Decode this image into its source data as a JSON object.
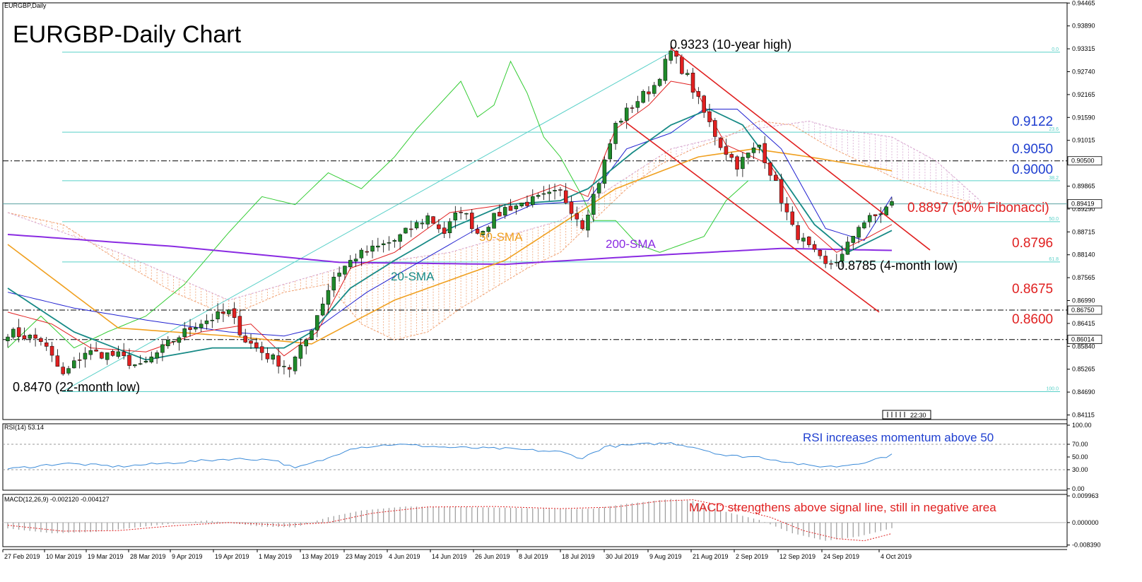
{
  "window_label": "EURGBP,Daily",
  "title": "EURGBP-Daily Chart",
  "colors": {
    "bull": "#1f8a2a",
    "bear": "#e02020",
    "sma20": "#178a86",
    "sma50": "#f0a020",
    "sma200": "#8a2be2",
    "tenkan": "#e02020",
    "kijun": "#2020d0",
    "chikou": "#33cc33",
    "kumo": "#f0a070",
    "fib": "#58d0c8",
    "channel": "#e02020",
    "rsi": "#3a8ad8",
    "macd_hist": "#9a9a9a",
    "macd_signal": "#e02020",
    "blue_label": "#1f3fd0",
    "red_label": "#e02020"
  },
  "chart_data": [
    {
      "type": "candlestick",
      "symbol": "EURGBP",
      "timeframe": "Daily",
      "ylim": [
        0.84,
        0.9447
      ],
      "y_ticks": [
        "0.94465",
        "0.93890",
        "0.93315",
        "0.92740",
        "0.92165",
        "0.91590",
        "0.91015",
        "0.90440",
        "0.89865",
        "0.89290",
        "0.88715",
        "0.88140",
        "0.87565",
        "0.86990",
        "0.86415",
        "0.85840",
        "0.85265",
        "0.84690",
        "0.84115"
      ],
      "x_ticks": [
        "27 Feb 2019",
        "10 Mar 2019",
        "19 Mar 2019",
        "28 Mar 2019",
        "9 Apr 2019",
        "19 Apr 2019",
        "1 May 2019",
        "13 May 2019",
        "23 May 2019",
        "4 Jun 2019",
        "14 Jun 2019",
        "26 Jun 2019",
        "8 Jul 2019",
        "18 Jul 2019",
        "30 Jul 2019",
        "9 Aug 2019",
        "21 Aug 2019",
        "2 Sep 2019",
        "12 Sep 2019",
        "24 Sep 2019",
        "4 Oct 2019"
      ],
      "price_tags": [
        {
          "label": "0.90500",
          "value": 0.905
        },
        {
          "label": "0.89419",
          "value": 0.89419
        },
        {
          "label": "0.86750",
          "value": 0.8675
        },
        {
          "label": "0.86014",
          "value": 0.86014
        }
      ],
      "candle_anchors": [
        [
          0,
          0.862
        ],
        [
          6,
          0.86
        ],
        [
          10,
          0.851
        ],
        [
          14,
          0.857
        ],
        [
          20,
          0.856
        ],
        [
          24,
          0.853
        ],
        [
          29,
          0.859
        ],
        [
          34,
          0.864
        ],
        [
          40,
          0.867
        ],
        [
          43,
          0.86
        ],
        [
          47,
          0.856
        ],
        [
          51,
          0.853
        ],
        [
          54,
          0.86
        ],
        [
          59,
          0.876
        ],
        [
          63,
          0.881
        ],
        [
          70,
          0.885
        ],
        [
          76,
          0.891
        ],
        [
          79,
          0.887
        ],
        [
          82,
          0.893
        ],
        [
          85,
          0.887
        ],
        [
          90,
          0.893
        ],
        [
          95,
          0.895
        ],
        [
          100,
          0.897
        ],
        [
          104,
          0.889
        ],
        [
          107,
          0.9
        ],
        [
          110,
          0.914
        ],
        [
          113,
          0.919
        ],
        [
          117,
          0.924
        ],
        [
          120,
          0.9323
        ],
        [
          123,
          0.926
        ],
        [
          126,
          0.917
        ],
        [
          129,
          0.909
        ],
        [
          132,
          0.904
        ],
        [
          136,
          0.909
        ],
        [
          139,
          0.899
        ],
        [
          142,
          0.888
        ],
        [
          145,
          0.883
        ],
        [
          148,
          0.8785
        ],
        [
          151,
          0.881
        ],
        [
          154,
          0.889
        ],
        [
          157,
          0.891
        ],
        [
          160,
          0.8942
        ]
      ],
      "sma20_anchors": [
        [
          0,
          0.873
        ],
        [
          12,
          0.862
        ],
        [
          25,
          0.855
        ],
        [
          37,
          0.858
        ],
        [
          50,
          0.858
        ],
        [
          55,
          0.862
        ],
        [
          62,
          0.873
        ],
        [
          70,
          0.88
        ],
        [
          80,
          0.888
        ],
        [
          90,
          0.894
        ],
        [
          100,
          0.895
        ],
        [
          105,
          0.898
        ],
        [
          113,
          0.907
        ],
        [
          120,
          0.914
        ],
        [
          127,
          0.918
        ],
        [
          133,
          0.914
        ],
        [
          140,
          0.901
        ],
        [
          146,
          0.889
        ],
        [
          152,
          0.882
        ],
        [
          160,
          0.8875
        ]
      ],
      "sma50_anchors": [
        [
          0,
          0.884
        ],
        [
          20,
          0.863
        ],
        [
          40,
          0.861
        ],
        [
          55,
          0.859
        ],
        [
          70,
          0.87
        ],
        [
          90,
          0.88
        ],
        [
          110,
          0.898
        ],
        [
          125,
          0.906
        ],
        [
          135,
          0.908
        ],
        [
          145,
          0.906
        ],
        [
          160,
          0.9025
        ]
      ],
      "sma200_anchors": [
        [
          0,
          0.8865
        ],
        [
          30,
          0.8835
        ],
        [
          60,
          0.8795
        ],
        [
          90,
          0.879
        ],
        [
          120,
          0.8815
        ],
        [
          140,
          0.883
        ],
        [
          160,
          0.8825
        ]
      ],
      "tenkan_anchors": [
        [
          0,
          0.867
        ],
        [
          8,
          0.864
        ],
        [
          15,
          0.858
        ],
        [
          25,
          0.857
        ],
        [
          35,
          0.862
        ],
        [
          44,
          0.864
        ],
        [
          50,
          0.856
        ],
        [
          56,
          0.862
        ],
        [
          62,
          0.878
        ],
        [
          70,
          0.882
        ],
        [
          80,
          0.892
        ],
        [
          90,
          0.894
        ],
        [
          100,
          0.899
        ],
        [
          105,
          0.896
        ],
        [
          110,
          0.913
        ],
        [
          116,
          0.919
        ],
        [
          120,
          0.925
        ],
        [
          124,
          0.924
        ],
        [
          130,
          0.909
        ],
        [
          138,
          0.904
        ],
        [
          145,
          0.888
        ],
        [
          150,
          0.882
        ],
        [
          156,
          0.886
        ],
        [
          160,
          0.889
        ]
      ],
      "kijun_anchors": [
        [
          0,
          0.872
        ],
        [
          12,
          0.868
        ],
        [
          25,
          0.865
        ],
        [
          40,
          0.862
        ],
        [
          50,
          0.861
        ],
        [
          56,
          0.863
        ],
        [
          65,
          0.872
        ],
        [
          75,
          0.88
        ],
        [
          85,
          0.888
        ],
        [
          95,
          0.894
        ],
        [
          105,
          0.895
        ],
        [
          112,
          0.908
        ],
        [
          120,
          0.912
        ],
        [
          126,
          0.918
        ],
        [
          132,
          0.918
        ],
        [
          140,
          0.908
        ],
        [
          148,
          0.888
        ],
        [
          155,
          0.885
        ],
        [
          160,
          0.896
        ]
      ],
      "chikou_anchors": [
        [
          0,
          0.858
        ],
        [
          6,
          0.866
        ],
        [
          12,
          0.858
        ],
        [
          18,
          0.862
        ],
        [
          25,
          0.866
        ],
        [
          32,
          0.874
        ],
        [
          40,
          0.887
        ],
        [
          46,
          0.896
        ],
        [
          52,
          0.894
        ],
        [
          58,
          0.902
        ],
        [
          64,
          0.898
        ],
        [
          70,
          0.906
        ],
        [
          74,
          0.913
        ],
        [
          78,
          0.919
        ],
        [
          82,
          0.925
        ],
        [
          85,
          0.916
        ],
        [
          88,
          0.919
        ],
        [
          91,
          0.93
        ],
        [
          94,
          0.922
        ],
        [
          97,
          0.911
        ],
        [
          100,
          0.906
        ],
        [
          104,
          0.896
        ],
        [
          106,
          0.89
        ],
        [
          110,
          0.89
        ],
        [
          114,
          0.884
        ],
        [
          118,
          0.882
        ],
        [
          122,
          0.884
        ],
        [
          126,
          0.886
        ],
        [
          130,
          0.895
        ],
        [
          134,
          0.9
        ]
      ],
      "kumo_anchors": [
        [
          0,
          0.892
        ],
        [
          10,
          0.889
        ],
        [
          20,
          0.88
        ],
        [
          30,
          0.872
        ],
        [
          40,
          0.866
        ],
        [
          50,
          0.872
        ],
        [
          58,
          0.874
        ],
        [
          64,
          0.864
        ],
        [
          70,
          0.86
        ],
        [
          76,
          0.862
        ],
        [
          82,
          0.868
        ],
        [
          88,
          0.873
        ],
        [
          94,
          0.878
        ],
        [
          100,
          0.882
        ],
        [
          106,
          0.89
        ],
        [
          112,
          0.898
        ],
        [
          118,
          0.904
        ],
        [
          124,
          0.908
        ],
        [
          130,
          0.911
        ],
        [
          136,
          0.915
        ],
        [
          142,
          0.914
        ],
        [
          148,
          0.909
        ],
        [
          154,
          0.905
        ],
        [
          160,
          0.901
        ],
        [
          168,
          0.897
        ],
        [
          176,
          0.894
        ]
      ],
      "kumo_upper_anchors": [
        [
          0,
          0.892
        ],
        [
          20,
          0.882
        ],
        [
          40,
          0.87
        ],
        [
          60,
          0.878
        ],
        [
          80,
          0.882
        ],
        [
          100,
          0.89
        ],
        [
          120,
          0.908
        ],
        [
          135,
          0.913
        ],
        [
          145,
          0.915
        ],
        [
          150,
          0.913
        ],
        [
          160,
          0.911
        ],
        [
          168,
          0.905
        ],
        [
          176,
          0.895
        ]
      ],
      "fib_levels": [
        {
          "label": "0.0",
          "value": 0.9323
        },
        {
          "label": "23.6",
          "value": 0.9122
        },
        {
          "label": "38.2",
          "value": 0.9
        },
        {
          "label": "50.0",
          "value": 0.8897
        },
        {
          "label": "61.8",
          "value": 0.8796
        },
        {
          "label": "100.0",
          "value": 0.847
        }
      ],
      "dashed_levels": [
        0.905,
        0.8675,
        0.8601
      ],
      "price_line": 0.89419,
      "annotations": {
        "high": "0.9323 (10-year high)",
        "low_22m": "0.8470 (22-month low)",
        "low_4m": "0.8785 (4-month low)",
        "lvl_9122": "0.9122",
        "lvl_9050": "0.9050",
        "lvl_9000": "0.9000",
        "lvl_8897": "0.8897 (50% Fibonacci)",
        "lvl_8796": "0.8796",
        "lvl_8675": "0.8675",
        "lvl_8600": "0.8600",
        "sma20": "20-SMA",
        "sma50": "50-SMA",
        "sma200": "200-SMA"
      },
      "scroll_indicator": "22:30"
    },
    {
      "type": "line",
      "name": "RSI",
      "header": "RSI(14) 53.14",
      "ylim": [
        0,
        100
      ],
      "y_ticks": [
        "100.00",
        "70.00",
        "50.00",
        "30.00",
        "0.00"
      ],
      "levels": [
        70,
        30
      ],
      "rsi_anchors": [
        [
          0,
          31
        ],
        [
          10,
          40
        ],
        [
          20,
          35
        ],
        [
          30,
          41
        ],
        [
          40,
          47
        ],
        [
          48,
          46
        ],
        [
          52,
          32
        ],
        [
          58,
          48
        ],
        [
          62,
          64
        ],
        [
          70,
          70
        ],
        [
          80,
          65
        ],
        [
          90,
          63
        ],
        [
          100,
          58
        ],
        [
          104,
          48
        ],
        [
          108,
          66
        ],
        [
          115,
          70
        ],
        [
          120,
          72
        ],
        [
          124,
          66
        ],
        [
          130,
          52
        ],
        [
          136,
          50
        ],
        [
          140,
          44
        ],
        [
          145,
          36
        ],
        [
          150,
          35
        ],
        [
          154,
          40
        ],
        [
          160,
          53
        ]
      ],
      "annotation": "RSI increases momentum above 50"
    },
    {
      "type": "bar",
      "name": "MACD",
      "header": "MACD(12,26,9) -0.002120 -0.004127",
      "ylim": [
        -0.009,
        0.0105
      ],
      "y_ticks": [
        "0.009963",
        "0.000000",
        "-0.008390"
      ],
      "hist_anchors": [
        [
          0,
          -0.0022
        ],
        [
          8,
          -0.004
        ],
        [
          16,
          -0.0035
        ],
        [
          26,
          -0.0012
        ],
        [
          36,
          0.0008
        ],
        [
          46,
          -0.0015
        ],
        [
          52,
          -0.0018
        ],
        [
          58,
          0.002
        ],
        [
          64,
          0.0045
        ],
        [
          72,
          0.006
        ],
        [
          82,
          0.0058
        ],
        [
          92,
          0.0055
        ],
        [
          100,
          0.005
        ],
        [
          106,
          0.0052
        ],
        [
          112,
          0.007
        ],
        [
          120,
          0.0088
        ],
        [
          124,
          0.008
        ],
        [
          130,
          0.004
        ],
        [
          136,
          0.001
        ],
        [
          142,
          -0.004
        ],
        [
          148,
          -0.0068
        ],
        [
          154,
          -0.0052
        ],
        [
          160,
          -0.0021
        ]
      ],
      "signal_anchors": [
        [
          0,
          -0.001
        ],
        [
          10,
          -0.0032
        ],
        [
          20,
          -0.003
        ],
        [
          30,
          -0.0012
        ],
        [
          40,
          0.0
        ],
        [
          50,
          -0.001
        ],
        [
          58,
          0.0
        ],
        [
          66,
          0.0035
        ],
        [
          76,
          0.0058
        ],
        [
          88,
          0.006
        ],
        [
          100,
          0.0052
        ],
        [
          110,
          0.0058
        ],
        [
          118,
          0.008
        ],
        [
          124,
          0.0085
        ],
        [
          130,
          0.006
        ],
        [
          138,
          0.002
        ],
        [
          144,
          -0.003
        ],
        [
          150,
          -0.006
        ],
        [
          155,
          -0.0068
        ],
        [
          160,
          -0.0041
        ]
      ],
      "annotation": "MACD strengthens above signal line, still in negative area"
    }
  ]
}
